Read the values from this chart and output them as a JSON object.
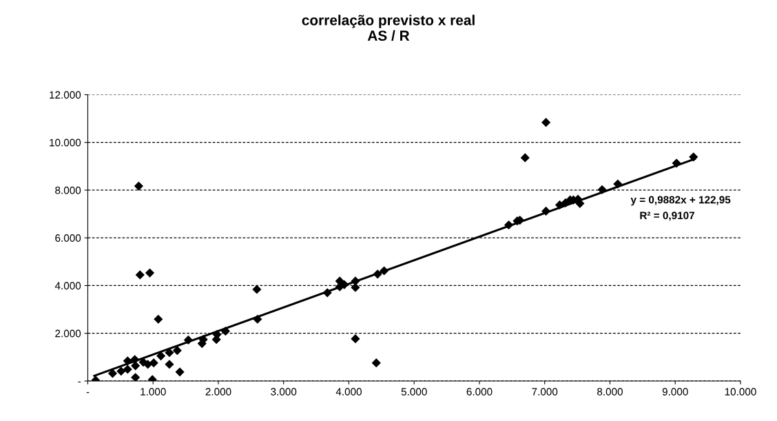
{
  "chart_data": {
    "type": "scatter",
    "title": "correlação previsto x real\nAS / R",
    "xlim": [
      0,
      10000
    ],
    "ylim": [
      0,
      12000
    ],
    "xticks": [
      {
        "value": 0,
        "label": "-"
      },
      {
        "value": 1000,
        "label": "1.000"
      },
      {
        "value": 2000,
        "label": "2.000"
      },
      {
        "value": 3000,
        "label": "3.000"
      },
      {
        "value": 4000,
        "label": "4.000"
      },
      {
        "value": 5000,
        "label": "5.000"
      },
      {
        "value": 6000,
        "label": "6.000"
      },
      {
        "value": 7000,
        "label": "7.000"
      },
      {
        "value": 8000,
        "label": "8.000"
      },
      {
        "value": 9000,
        "label": "9.000"
      },
      {
        "value": 10000,
        "label": "10.000"
      }
    ],
    "yticks": [
      {
        "value": 0,
        "label": "-"
      },
      {
        "value": 2000,
        "label": "2.000"
      },
      {
        "value": 4000,
        "label": "4.000"
      },
      {
        "value": 6000,
        "label": "6.000"
      },
      {
        "value": 8000,
        "label": "8.000"
      },
      {
        "value": 10000,
        "label": "10.000"
      },
      {
        "value": 12000,
        "label": "12.000"
      }
    ],
    "grid": "y",
    "series": [
      {
        "marker": "diamond",
        "color": "#000000",
        "x": [
          120,
          380,
          510,
          610,
          610,
          720,
          730,
          730,
          800,
          950,
          990,
          850,
          920,
          1010,
          1080,
          1120,
          1250,
          1250,
          1370,
          1410,
          1540,
          1750,
          1770,
          1970,
          1980,
          2110,
          2590,
          2600,
          3670,
          3860,
          3860,
          3930,
          4100,
          4100,
          4440,
          4540,
          4100,
          4420,
          7020,
          6700,
          6450,
          6580,
          6620,
          7020,
          7230,
          7320,
          7390,
          7440,
          7510,
          7540,
          7880,
          8120,
          9020,
          9280,
          780
        ],
        "values": [
          30,
          320,
          410,
          490,
          840,
          900,
          640,
          150,
          4450,
          4530,
          60,
          790,
          700,
          760,
          2590,
          1050,
          700,
          1190,
          1280,
          380,
          1720,
          1570,
          1740,
          1740,
          1950,
          2090,
          3840,
          2590,
          3700,
          4190,
          3950,
          4040,
          4190,
          3920,
          4480,
          4620,
          1770,
          760,
          10840,
          9360,
          6540,
          6710,
          6740,
          7120,
          7380,
          7470,
          7590,
          7590,
          7620,
          7440,
          8020,
          8260,
          9130,
          9390,
          8170
        ]
      },
      {
        "type": "line",
        "color": "#000000",
        "x": [
          100,
          9300
        ],
        "values": [
          220,
          9310
        ],
        "marker": "none"
      }
    ],
    "annotations": [
      "y = 0,9882x + 122,95",
      "R² = 0,9107"
    ]
  }
}
